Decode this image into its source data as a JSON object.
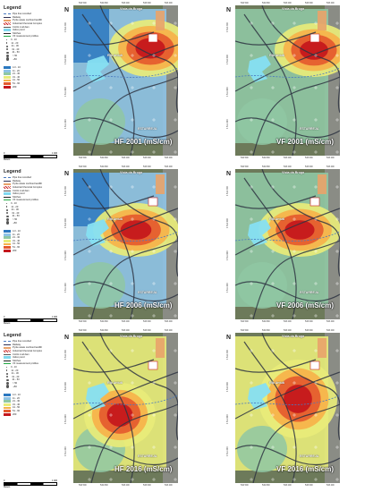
{
  "legend": {
    "title": "Legend",
    "items": [
      "Pipe line recorded",
      "Railway",
      "Pyrite waste confined landfill",
      "Industrial Chemical Complex",
      "CoCH mud dam",
      "Velico pond",
      "Stitches",
      "VF measurement profiles"
    ],
    "profile_classes": [
      "0 - 10",
      "11 - 20",
      "21 - 30",
      "31 - 40",
      "41 - 50",
      "> 50",
      "+50"
    ],
    "ec_classes": [
      "4.3 - 10",
      "11 - 20",
      "21 - 30",
      "31 - 40",
      "41 - 50",
      "51 - 60",
      "200"
    ],
    "ec_colors": [
      "#2b78c0",
      "#8ec3e6",
      "#8fc7a3",
      "#e8ec7a",
      "#f6b24a",
      "#e45a2e",
      "#c4161c"
    ],
    "scale_label": "Meters",
    "scale_max": "1 400"
  },
  "maps": [
    {
      "label": "HF 2001 (mS/cm)",
      "variant": 0
    },
    {
      "label": "VF 2001 (mS/cm)",
      "variant": 1
    },
    {
      "label": "HF 2006 (mS/cm)",
      "variant": 2
    },
    {
      "label": "VF 2006 (mS/cm)",
      "variant": 3
    },
    {
      "label": "HF 2016 (mS/cm)",
      "variant": 4
    },
    {
      "label": "VF 2016 (mS/cm)",
      "variant": 5
    }
  ],
  "places": {
    "north": "Vista da Broga",
    "south": "ESTARREJA",
    "river": "Rio Antuã"
  },
  "x_ticks": [
    "532 500",
    "532 800",
    "533 200",
    "533 600",
    "533 400"
  ],
  "y_ticks": [
    "4 512 400",
    "4 512 000",
    "4 511 600",
    "4 511 200"
  ]
}
